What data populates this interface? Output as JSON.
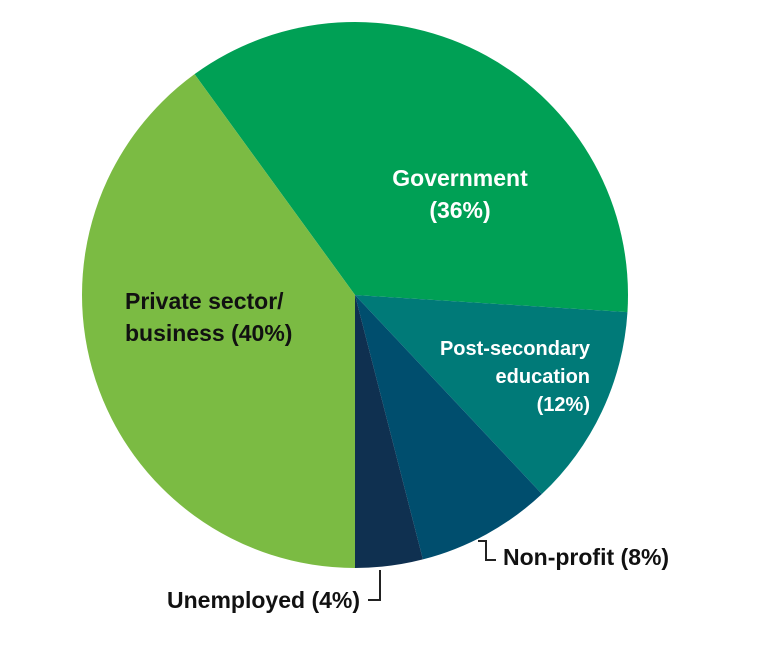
{
  "chart_data": {
    "type": "pie",
    "categories": [
      "Government",
      "Post-secondary education",
      "Non-profit",
      "Unemployed",
      "Private sector/ business"
    ],
    "values": [
      36,
      12,
      8,
      4,
      40
    ],
    "value_labels": [
      "(36%)",
      "(12%)",
      "(8%)",
      "(4%)",
      "(40%)"
    ],
    "colors": [
      "#00a055",
      "#007a78",
      "#004e6e",
      "#0f3050",
      "#7bbb43"
    ]
  }
}
